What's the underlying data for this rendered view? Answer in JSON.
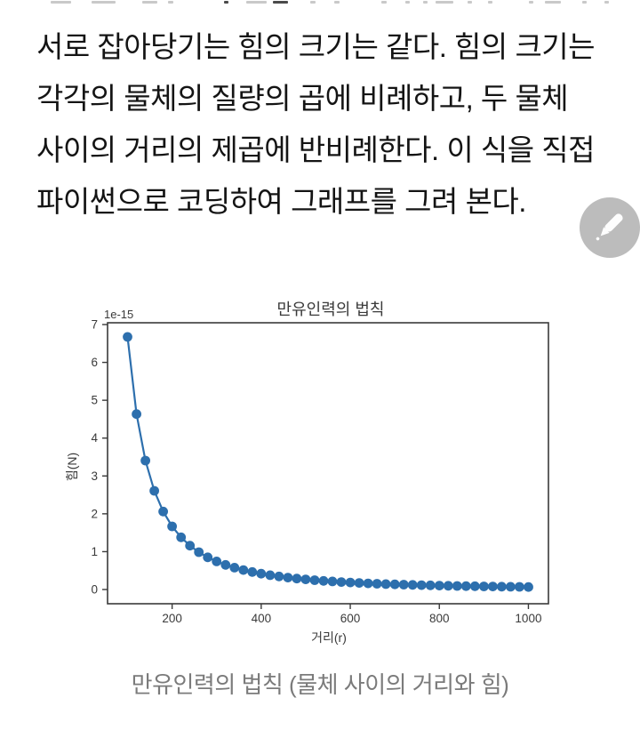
{
  "paragraph": {
    "lines": [
      "서로 잡아당기는 힘의 크기는 같다. 힘의 크기는",
      "각각의 물체의 질량의 곱에 비례하고, 두 물체",
      "사이의 거리의 제곱에 반비례한다. 이 식을 직접",
      "파이썬으로 코딩하여 그래프를 그려 본다."
    ]
  },
  "edit_fab": {
    "icon": "pencil-icon",
    "bg_color": "#bcbcbc",
    "glyph_color": "#fdfdfd"
  },
  "figure": {
    "caption": "만유인력의 법칙 (물체 사이의 거리와 힘)"
  },
  "chart_data": {
    "type": "line",
    "title": "만유인력의 법칙",
    "xlabel": "거리(r)",
    "ylabel": "힘(N)",
    "y_offset_label": "1e-15",
    "x_ticks": [
      200,
      400,
      600,
      800,
      1000
    ],
    "y_ticks": [
      0,
      1,
      2,
      3,
      4,
      5,
      6,
      7
    ],
    "xlim": [
      55,
      1045
    ],
    "ylim_1e15": [
      -0.376,
      7.0
    ],
    "grid": false,
    "legend": "none",
    "marker": "o",
    "line_color": "#2d6fad",
    "axis_color": "#3a3a3a",
    "x": [
      100,
      120,
      140,
      160,
      180,
      200,
      220,
      240,
      260,
      280,
      300,
      320,
      340,
      360,
      380,
      400,
      420,
      440,
      460,
      480,
      500,
      520,
      540,
      560,
      580,
      600,
      620,
      640,
      660,
      680,
      700,
      720,
      740,
      760,
      780,
      800,
      820,
      840,
      860,
      880,
      900,
      920,
      940,
      960,
      980,
      1000
    ],
    "y_1e15": [
      6.674,
      4.6347,
      3.4051,
      2.607,
      2.0598,
      1.6685,
      1.3789,
      1.1587,
      0.9873,
      0.8513,
      0.7416,
      0.6518,
      0.5773,
      0.515,
      0.4622,
      0.4171,
      0.3783,
      0.3447,
      0.3154,
      0.2897,
      0.267,
      0.2468,
      0.2289,
      0.2128,
      0.1984,
      0.1854,
      0.1736,
      0.1629,
      0.1532,
      0.1443,
      0.1362,
      0.1287,
      0.1219,
      0.1155,
      0.1097,
      0.1043,
      0.0993,
      0.0946,
      0.0902,
      0.0862,
      0.0824,
      0.0789,
      0.0755,
      0.0724,
      0.0695,
      0.0667
    ]
  }
}
